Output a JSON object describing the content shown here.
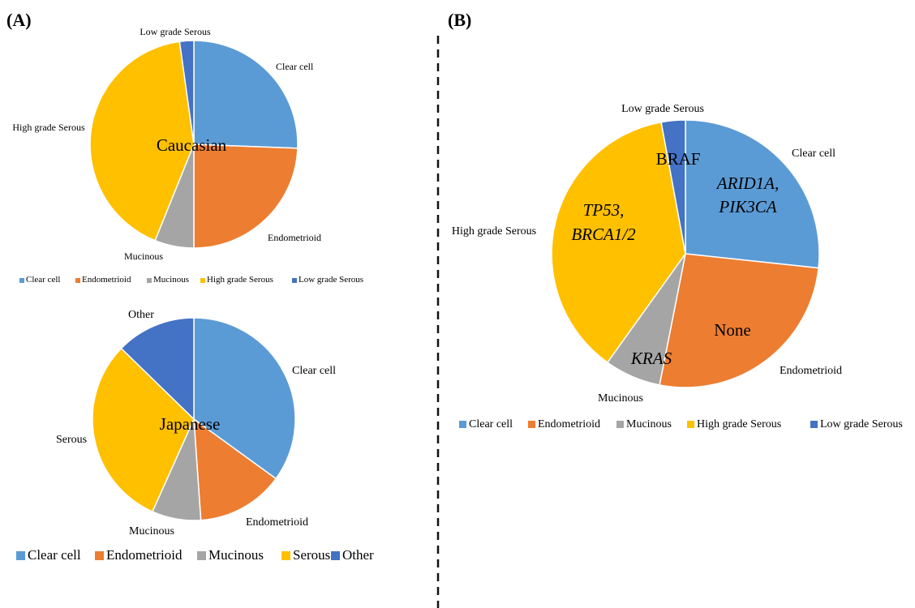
{
  "colors": {
    "Clear cell": "#5B9BD5",
    "Endometrioid": "#ED7D31",
    "Mucinous": "#A5A5A5",
    "High grade Serous": "#FFC000",
    "Low grade Serous": "#4472C4",
    "Serous": "#FFC000",
    "Other": "#4472C4"
  },
  "panels": {
    "a": "(A)",
    "b": "(B)"
  },
  "chart_data": [
    {
      "type": "pie",
      "center_label": "Caucasian",
      "categories": [
        "Clear cell",
        "Endometrioid",
        "Mucinous",
        "High grade Serous",
        "Low grade Serous"
      ],
      "values": [
        25.6,
        24.4,
        6.1,
        41.7,
        2.2
      ],
      "legend": [
        "Clear cell",
        "Endometrioid",
        "Mucinous",
        "High grade Serous",
        "Low grade Serous"
      ],
      "legend_position": "bottom"
    },
    {
      "type": "pie",
      "center_label": "Japanese",
      "categories": [
        "Clear cell",
        "Endometrioid",
        "Mucinous",
        "Serous",
        "Other"
      ],
      "values": [
        35.0,
        13.9,
        7.8,
        30.6,
        12.7
      ],
      "legend": [
        "Clear cell",
        "Endometrioid",
        "Mucinous",
        "Serous",
        "Other"
      ],
      "legend_position": "bottom"
    },
    {
      "type": "pie",
      "categories": [
        "Clear cell",
        "Endometrioid",
        "Mucinous",
        "High grade Serous",
        "Low grade Serous"
      ],
      "values": [
        26.7,
        26.4,
        6.8,
        37.2,
        2.9
      ],
      "inner_labels": {
        "Clear cell": [
          "ARID1A,",
          "PIK3CA"
        ],
        "Endometrioid": [
          "None"
        ],
        "Mucinous": [
          "KRAS"
        ],
        "High grade Serous": [
          "TP53,",
          "BRCA1/2"
        ],
        "Low grade Serous": [
          "BRAF"
        ]
      },
      "legend": [
        "Clear cell",
        "Endometrioid",
        "Mucinous",
        "High grade Serous",
        "Low grade Serous"
      ],
      "legend_position": "bottom"
    }
  ]
}
